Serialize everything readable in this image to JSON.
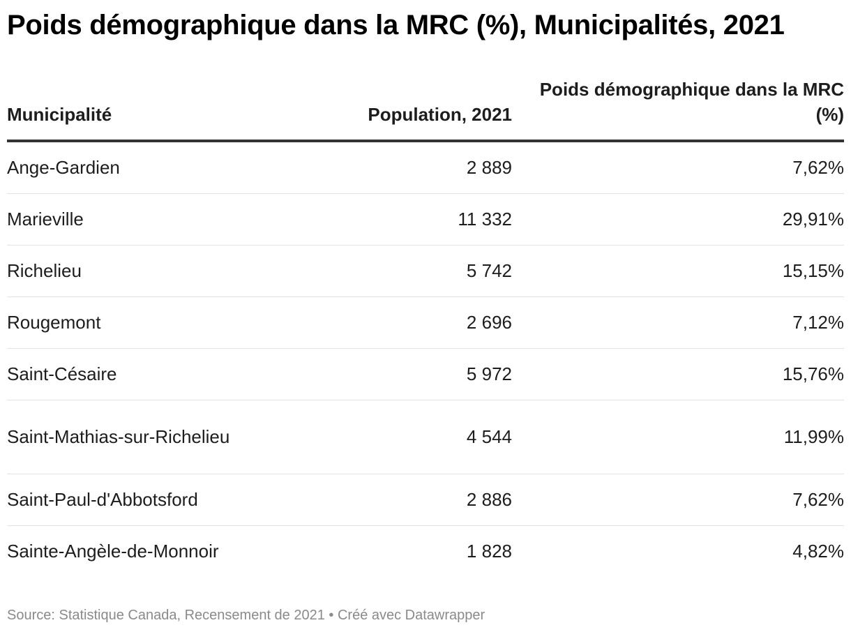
{
  "title": "Poids démographique dans la MRC (%), Municipalités, 2021",
  "chart_data": {
    "type": "table",
    "title": "Poids démographique dans la MRC (%), Municipalités, 2021",
    "columns": [
      "Municipalité",
      "Population, 2021",
      "Poids démographique dans la MRC (%)"
    ],
    "rows": [
      {
        "municipalite": "Ange-Gardien",
        "population": "2 889",
        "poids": "7,62%"
      },
      {
        "municipalite": "Marieville",
        "population": "11 332",
        "poids": "29,91%"
      },
      {
        "municipalite": "Richelieu",
        "population": "5 742",
        "poids": "15,15%"
      },
      {
        "municipalite": "Rougemont",
        "population": "2 696",
        "poids": "7,12%"
      },
      {
        "municipalite": "Saint-Césaire",
        "population": "5 972",
        "poids": "15,76%"
      },
      {
        "municipalite": "Saint-Mathias-sur-Richelieu",
        "population": "4 544",
        "poids": "11,99%"
      },
      {
        "municipalite": "Saint-Paul-d'Abbotsford",
        "population": "2 886",
        "poids": "7,62%"
      },
      {
        "municipalite": "Sainte-Angèle-de-Monnoir",
        "population": "1 828",
        "poids": "4,82%"
      }
    ]
  },
  "source": "Source: Statistique Canada, Recensement de 2021 • Créé avec Datawrapper"
}
